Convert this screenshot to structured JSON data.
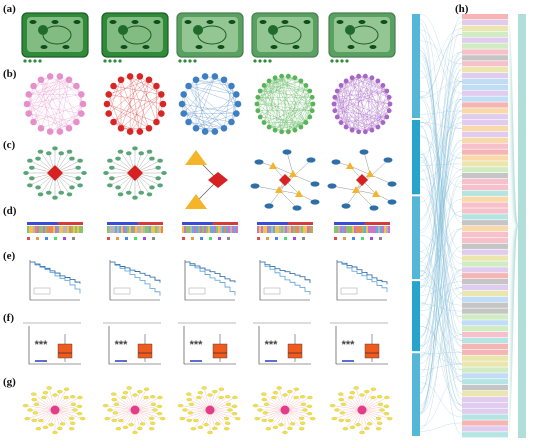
{
  "panels": {
    "a": "(a)",
    "b": "(b)",
    "c": "(c)",
    "d": "(d)",
    "e": "(e)",
    "f": "(f)",
    "g": "(g)",
    "h": "(h)"
  },
  "significance_mark": "***",
  "colors": {
    "cell_green": "#2f8a3a",
    "net_pink": "#e58fcb",
    "net_red": "#d72626",
    "net_blue": "#3d7fc1",
    "net_green": "#59b359",
    "net_purple": "#a566c4",
    "diamond_red": "#d62222",
    "mini_green": "#5aa578",
    "triangle_orange": "#f5b52a",
    "ellipse_blue": "#2f6fa8",
    "km_blue": "#3a8fd0",
    "box_orange": "#ef5a1f",
    "node_yellow": "#f0e04a",
    "hub_pink": "#e43c8a",
    "sankey_left": "#1b9fc9"
  }
}
